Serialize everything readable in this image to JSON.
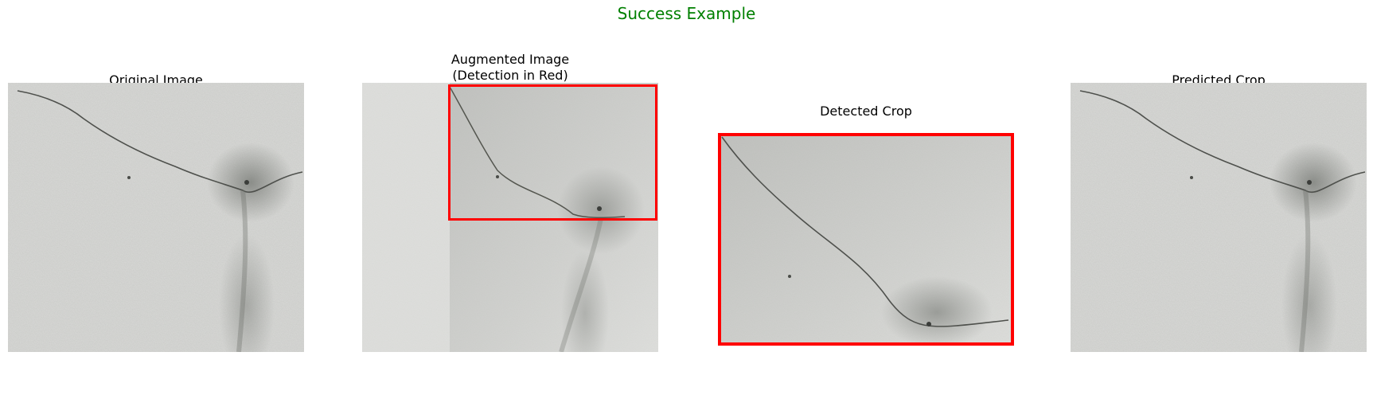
{
  "figure": {
    "title": "Success Example",
    "title_color": "#008000",
    "box_color": "#ff0000"
  },
  "panels": [
    {
      "title": "Original Image"
    },
    {
      "title": "Augmented Image\n(Detection in Red)"
    },
    {
      "title": "Detected Crop"
    },
    {
      "title": "Predicted Crop"
    }
  ]
}
